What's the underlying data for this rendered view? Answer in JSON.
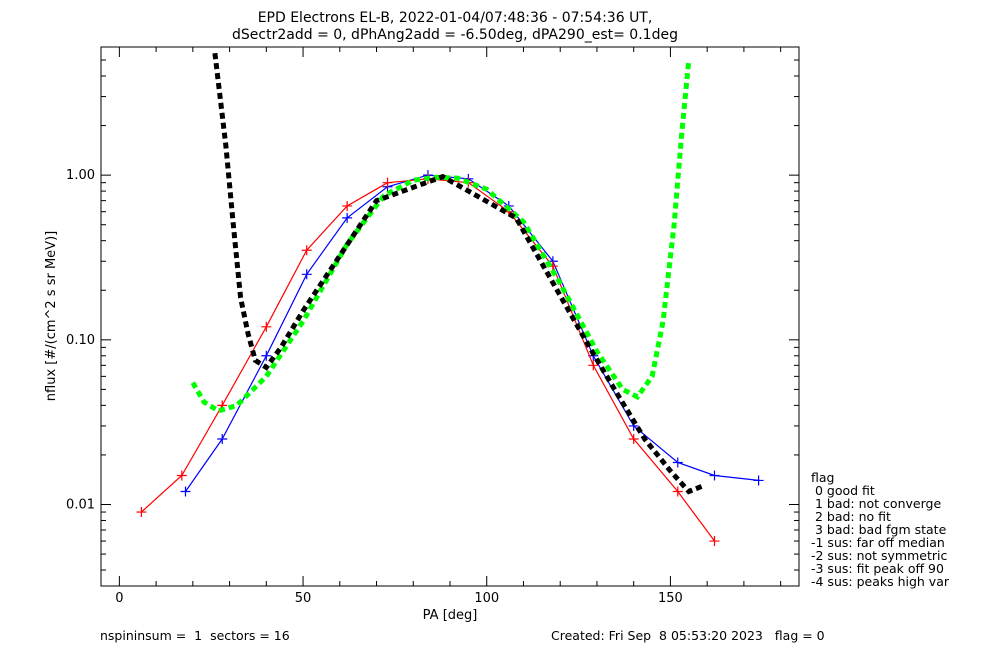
{
  "title_line1": "EPD Electrons EL-B, 2022-01-04/07:48:36 - 07:54:36 UT,",
  "title_line2": "dSectr2add = 0, dPhAng2add = -6.50deg, dPA290_est=   0.1deg",
  "footer": {
    "left": "nspininsum =  1  sectors = 16",
    "created": "Created: Fri Sep  8 05:53:20 2023   flag = 0"
  },
  "legend": {
    "title": "flag",
    "entries": [
      " 0 good fit",
      " 1 bad: not converge",
      " 2 bad: no fit",
      " 3 bad: bad fgm state",
      "-1 sus: far off median",
      "-2 sus: not symmetric",
      "-3 sus: fit peak off 90",
      "-4 sus: peaks high var"
    ]
  },
  "colors": {
    "red": "#ff0000",
    "blue": "#0000ff",
    "black": "#000000",
    "green": "#00ff00"
  },
  "chart_data": {
    "type": "line",
    "xlabel": "PA [deg]",
    "ylabel": "nflux [#/(cm^2 s sr MeV)]",
    "x_ticks": [
      0,
      50,
      100,
      150
    ],
    "y_ticks": [
      0.01,
      0.1,
      1.0
    ],
    "y_tick_labels": [
      "0.01",
      "0.10",
      "1.00"
    ],
    "xlim": [
      -5,
      185
    ],
    "ylim": [
      0.0032,
      6.0
    ],
    "yscale": "log",
    "series": [
      {
        "color": "blue",
        "points": [
          [
            18,
            0.012
          ],
          [
            28,
            0.025
          ],
          [
            40,
            0.08
          ],
          [
            51,
            0.25
          ],
          [
            62,
            0.55
          ],
          [
            73,
            0.85
          ],
          [
            84,
            1.0
          ],
          [
            95,
            0.95
          ],
          [
            106,
            0.65
          ],
          [
            118,
            0.3
          ],
          [
            129,
            0.08
          ],
          [
            140,
            0.03
          ],
          [
            152,
            0.018
          ],
          [
            162,
            0.015
          ],
          [
            174,
            0.014
          ]
        ]
      },
      {
        "color": "red",
        "points": [
          [
            6,
            0.009
          ],
          [
            17,
            0.015
          ],
          [
            28,
            0.04
          ],
          [
            40,
            0.12
          ],
          [
            51,
            0.35
          ],
          [
            62,
            0.65
          ],
          [
            73,
            0.9
          ],
          [
            84,
            0.95
          ],
          [
            95,
            0.9
          ],
          [
            106,
            0.6
          ],
          [
            118,
            0.28
          ],
          [
            129,
            0.07
          ],
          [
            140,
            0.025
          ],
          [
            152,
            0.012
          ],
          [
            162,
            0.006
          ]
        ]
      },
      {
        "color": "green",
        "style": "dashed",
        "points": [
          [
            20,
            0.055
          ],
          [
            23,
            0.042
          ],
          [
            27,
            0.037
          ],
          [
            32,
            0.04
          ],
          [
            40,
            0.06
          ],
          [
            50,
            0.13
          ],
          [
            62,
            0.38
          ],
          [
            72,
            0.75
          ],
          [
            80,
            0.93
          ],
          [
            86,
            0.97
          ],
          [
            92,
            0.96
          ],
          [
            100,
            0.82
          ],
          [
            110,
            0.52
          ],
          [
            120,
            0.22
          ],
          [
            130,
            0.085
          ],
          [
            137,
            0.05
          ],
          [
            141,
            0.045
          ],
          [
            145,
            0.06
          ],
          [
            148,
            0.13
          ],
          [
            151,
            0.5
          ],
          [
            153,
            1.7
          ],
          [
            155,
            5.0
          ]
        ]
      },
      {
        "color": "black",
        "style": "dashed",
        "points": [
          [
            26,
            5.5
          ],
          [
            29,
            1.5
          ],
          [
            31,
            0.5
          ],
          [
            33,
            0.18
          ],
          [
            35,
            0.11
          ],
          [
            37,
            0.075
          ],
          [
            40,
            0.068
          ],
          [
            44,
            0.09
          ],
          [
            50,
            0.15
          ],
          [
            70,
            0.7
          ],
          [
            88,
            0.98
          ],
          [
            108,
            0.55
          ],
          [
            128,
            0.09
          ],
          [
            136,
            0.045
          ],
          [
            143,
            0.025
          ],
          [
            150,
            0.016
          ],
          [
            155,
            0.012
          ],
          [
            159,
            0.013
          ]
        ]
      }
    ],
    "grid": false,
    "legend_position": "bottom-right outside"
  }
}
